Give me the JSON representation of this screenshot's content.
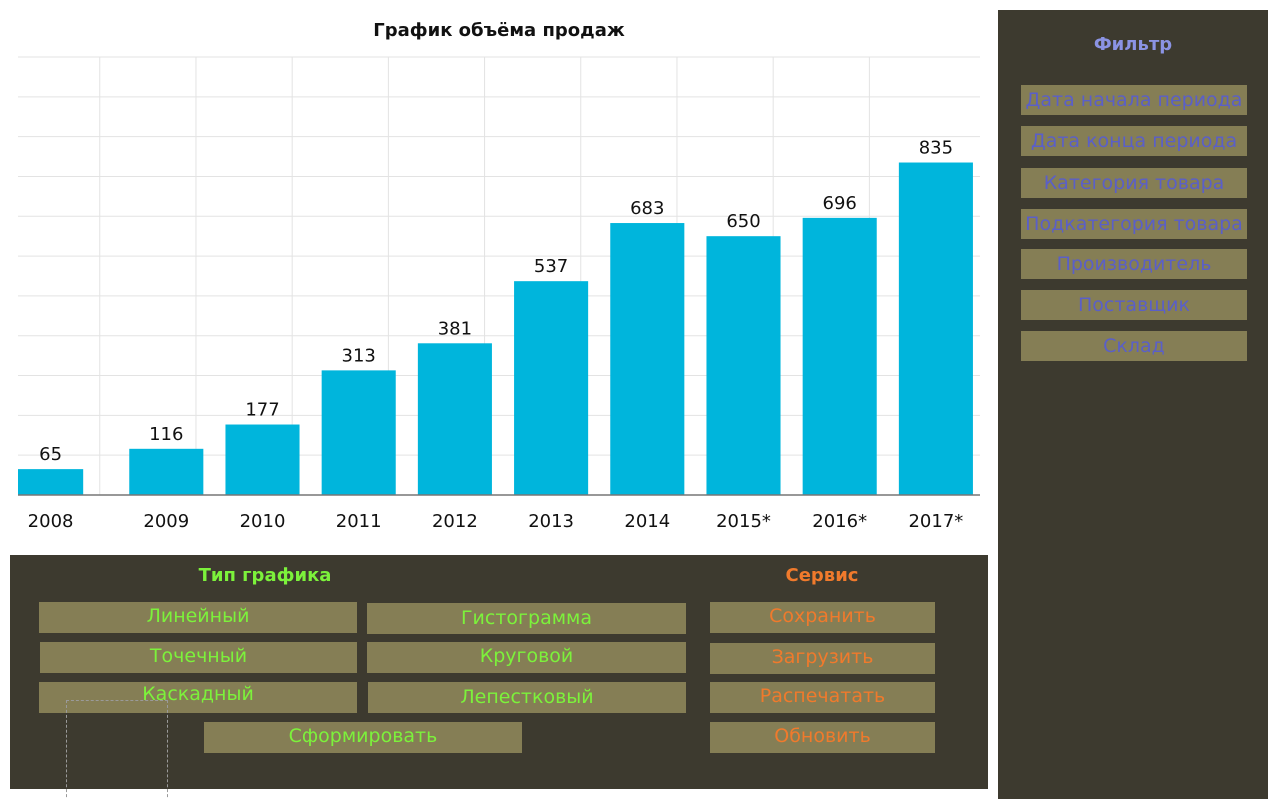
{
  "chart": {
    "title": "График объёма продаж"
  },
  "chart_data": {
    "type": "bar",
    "title": "График объёма продаж",
    "categories": [
      "2008",
      "2009",
      "2010",
      "2011",
      "2012",
      "2013",
      "2014",
      "2015*",
      "2016*",
      "2017*"
    ],
    "values": [
      65,
      116,
      177,
      313,
      381,
      537,
      683,
      650,
      696,
      835
    ],
    "xlabel": "",
    "ylabel": "",
    "ylim": [
      0,
      1100
    ],
    "grid": true,
    "bar_color": "#00b5dc"
  },
  "filter": {
    "title": "Фильтр",
    "items": [
      {
        "label": "Дата начала периода"
      },
      {
        "label": "Дата конца периода"
      },
      {
        "label": "Категория товара"
      },
      {
        "label": "Подкатегория товара"
      },
      {
        "label": "Производитель"
      },
      {
        "label": "Поставщик"
      },
      {
        "label": "Склад"
      }
    ]
  },
  "chart_type": {
    "title": "Тип графика",
    "buttons": {
      "line": "Линейный",
      "histogram": "Гистограмма",
      "scatter": "Точечный",
      "pie": "Круговой",
      "cascade": "Каскадный",
      "radar": "Лепестковый",
      "build": "Сформировать"
    }
  },
  "service": {
    "title": "Сервис",
    "buttons": {
      "save": "Сохранить",
      "load": "Загрузить",
      "print": "Распечатать",
      "refresh": "Обновить"
    }
  },
  "colors": {
    "panel_bg": "#3d3a2f",
    "button_bg": "#857e55",
    "filter_text": "#5a5fc8",
    "filter_title": "#8b93e3",
    "type_text": "#7cf23b",
    "service_text": "#f07a2c",
    "bar": "#00b5dc"
  }
}
